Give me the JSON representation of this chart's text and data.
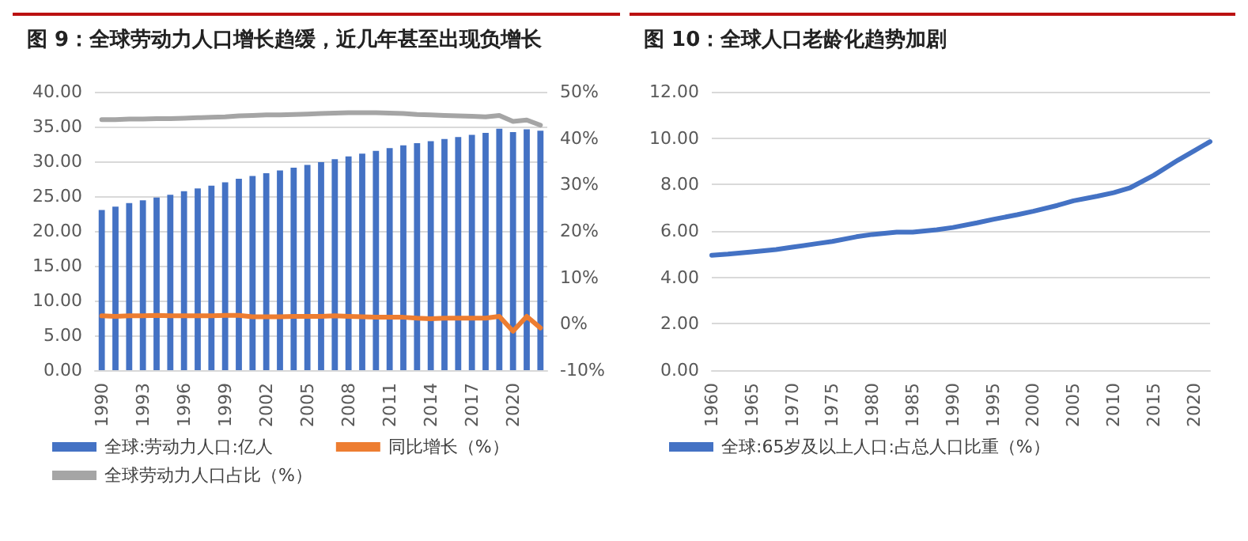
{
  "chart_data": [
    {
      "type": "bar",
      "title": "图 9：全球劳动力人口增长趋缓，近几年甚至出现负增长",
      "categories": [
        "1990",
        null,
        null,
        "1993",
        null,
        null,
        "1996",
        null,
        null,
        "1999",
        null,
        null,
        "2002",
        null,
        null,
        "2005",
        null,
        null,
        "2008",
        null,
        null,
        "2011",
        null,
        null,
        "2014",
        null,
        null,
        "2017",
        null,
        null,
        "2020",
        null,
        null
      ],
      "series": [
        {
          "name": "全球:劳动力人口:亿人",
          "color": "#4472c4",
          "type": "bar",
          "values": [
            23.0,
            23.5,
            24.0,
            24.4,
            24.8,
            25.2,
            25.7,
            26.1,
            26.5,
            27.0,
            27.5,
            27.9,
            28.3,
            28.7,
            29.1,
            29.5,
            29.9,
            30.3,
            30.7,
            31.1,
            31.5,
            31.9,
            32.3,
            32.6,
            32.9,
            33.2,
            33.5,
            33.8,
            34.1,
            34.7,
            34.2,
            34.6,
            34.4
          ]
        },
        {
          "name": "同比增长（%）",
          "color": "#ed7d31",
          "type": "line",
          "axis": "y2",
          "values": [
            1.7,
            1.6,
            1.7,
            1.7,
            1.8,
            1.7,
            1.7,
            1.7,
            1.7,
            1.8,
            1.8,
            1.5,
            1.5,
            1.5,
            1.6,
            1.6,
            1.6,
            1.7,
            1.6,
            1.5,
            1.4,
            1.4,
            1.4,
            1.2,
            1.1,
            1.2,
            1.2,
            1.2,
            1.2,
            1.6,
            -1.6,
            1.6,
            -0.9
          ]
        },
        {
          "name": "全球劳动力人口占比（%）",
          "color": "#a5a5a5",
          "type": "line",
          "axis": "y2",
          "values": [
            44.0,
            44.0,
            44.1,
            44.1,
            44.2,
            44.2,
            44.3,
            44.4,
            44.5,
            44.6,
            44.8,
            44.9,
            45.0,
            45.0,
            45.1,
            45.2,
            45.3,
            45.4,
            45.5,
            45.5,
            45.5,
            45.4,
            45.3,
            45.1,
            45.0,
            44.9,
            44.8,
            44.7,
            44.6,
            44.9,
            43.6,
            43.9,
            42.8
          ]
        }
      ],
      "ylim": [
        0,
        40
      ],
      "yticks": [
        {
          "value": 0,
          "label": "0.00"
        },
        {
          "value": 5,
          "label": "5.00"
        },
        {
          "value": 10,
          "label": "10.00"
        },
        {
          "value": 15,
          "label": "15.00"
        },
        {
          "value": 20,
          "label": "20.00"
        },
        {
          "value": 25,
          "label": "25.00"
        },
        {
          "value": 30,
          "label": "30.00"
        },
        {
          "value": 35,
          "label": "35.00"
        },
        {
          "value": 40,
          "label": "40.00"
        }
      ],
      "y2lim": [
        -10,
        50
      ],
      "y2ticks": [
        {
          "value": -10,
          "label": "-10%"
        },
        {
          "value": 0,
          "label": "0%"
        },
        {
          "value": 10,
          "label": "10%"
        },
        {
          "value": 20,
          "label": "20%"
        },
        {
          "value": 30,
          "label": "30%"
        },
        {
          "value": 40,
          "label": "40%"
        },
        {
          "value": 50,
          "label": "50%"
        }
      ],
      "grid": "y",
      "legend": "bottom",
      "marker": "none"
    },
    {
      "type": "line",
      "title": "图 10：全球人口老龄化趋势加剧",
      "x": [
        1960,
        1962,
        1965,
        1968,
        1970,
        1973,
        1975,
        1978,
        1980,
        1983,
        1985,
        1988,
        1990,
        1993,
        1995,
        1998,
        2000,
        2003,
        2005,
        2008,
        2010,
        2012,
        2015,
        2018,
        2020,
        2022
      ],
      "series": [
        {
          "name": "全球:65岁及以上人口:占总人口比重（%）",
          "color": "#4472c4",
          "values": [
            4.95,
            5.0,
            5.1,
            5.2,
            5.3,
            5.45,
            5.55,
            5.75,
            5.85,
            5.95,
            5.95,
            6.05,
            6.15,
            6.35,
            6.5,
            6.7,
            6.85,
            7.1,
            7.3,
            7.5,
            7.65,
            7.85,
            8.4,
            9.05,
            9.45,
            9.85
          ]
        }
      ],
      "xlim": [
        1960,
        2022
      ],
      "xticks": [
        1960,
        1965,
        1970,
        1975,
        1980,
        1985,
        1990,
        1995,
        2000,
        2005,
        2010,
        2015,
        2020
      ],
      "ylim": [
        0,
        12
      ],
      "yticks": [
        {
          "value": 0,
          "label": "0.00"
        },
        {
          "value": 2,
          "label": "2.00"
        },
        {
          "value": 4,
          "label": "4.00"
        },
        {
          "value": 6,
          "label": "6.00"
        },
        {
          "value": 8,
          "label": "8.00"
        },
        {
          "value": 10,
          "label": "10.00"
        },
        {
          "value": 12,
          "label": "12.00"
        }
      ],
      "grid": "y",
      "legend": "bottom",
      "marker": "none",
      "line_style": "solid"
    }
  ]
}
